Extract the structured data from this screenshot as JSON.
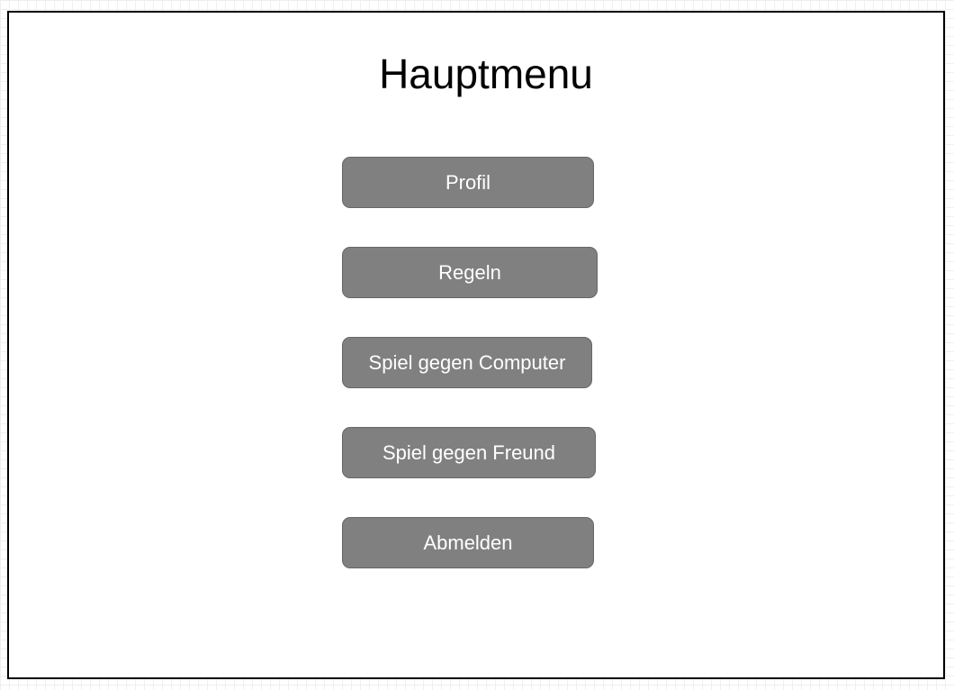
{
  "title": "Hauptmenu",
  "buttons": {
    "profile": "Profil",
    "rules": "Regeln",
    "vs_computer": "Spiel gegen Computer",
    "vs_friend": "Spiel gegen Freund",
    "logout": "Abmelden"
  },
  "colors": {
    "button_fill": "#808080",
    "button_border": "#666666",
    "button_text": "#ffffff",
    "frame_border": "#000000"
  }
}
